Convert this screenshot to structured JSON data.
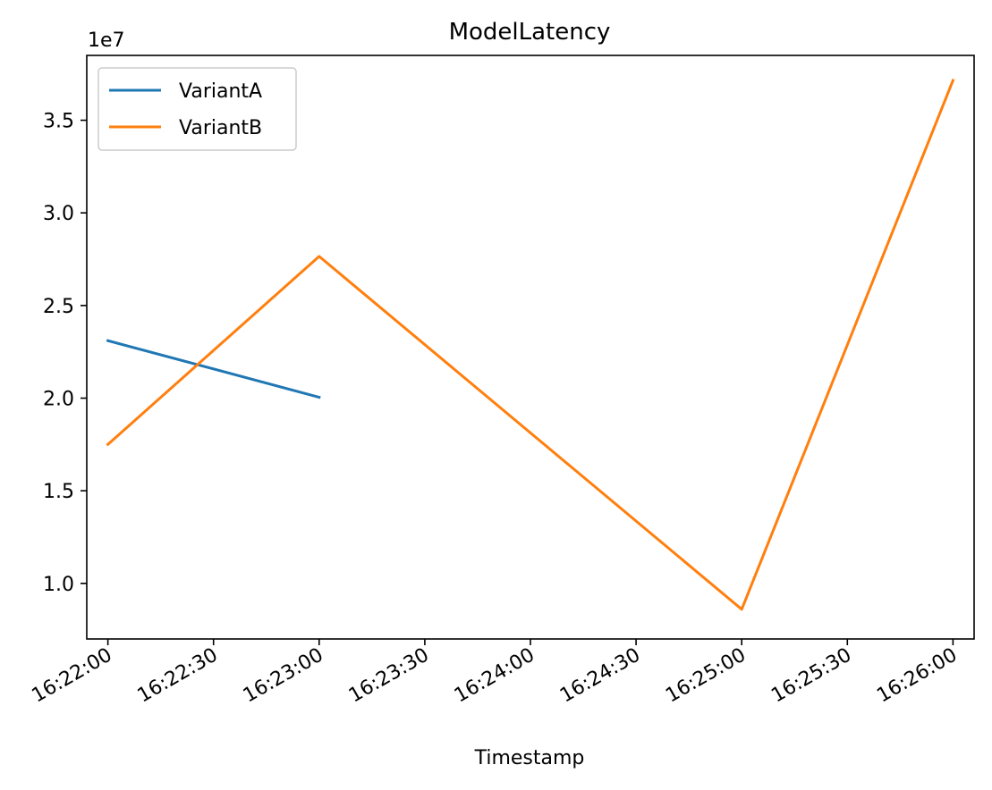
{
  "chart_data": {
    "type": "line",
    "title": "ModelLatency",
    "xlabel": "Timestamp",
    "ylabel": "",
    "offset_label": "1e7",
    "x_ticks": [
      "16:22:00",
      "16:22:30",
      "16:23:00",
      "16:23:30",
      "16:24:00",
      "16:24:30",
      "16:25:00",
      "16:25:30",
      "16:26:00"
    ],
    "y_ticks": [
      "1.0",
      "1.5",
      "2.0",
      "2.5",
      "3.0",
      "3.5"
    ],
    "ylim": [
      7000000,
      38500000
    ],
    "xlim": [
      "16:21:54",
      "16:26:06"
    ],
    "grid": false,
    "legend_position": "upper-left",
    "series": [
      {
        "name": "VariantA",
        "color": "#1f77b4",
        "points": [
          {
            "x": "16:22:00",
            "y": 23100000
          },
          {
            "x": "16:23:00",
            "y": 20050000
          }
        ]
      },
      {
        "name": "VariantB",
        "color": "#ff7f0e",
        "points": [
          {
            "x": "16:22:00",
            "y": 17500000
          },
          {
            "x": "16:23:00",
            "y": 27650000
          },
          {
            "x": "16:25:00",
            "y": 8600000
          },
          {
            "x": "16:26:00",
            "y": 37150000
          }
        ]
      }
    ]
  }
}
